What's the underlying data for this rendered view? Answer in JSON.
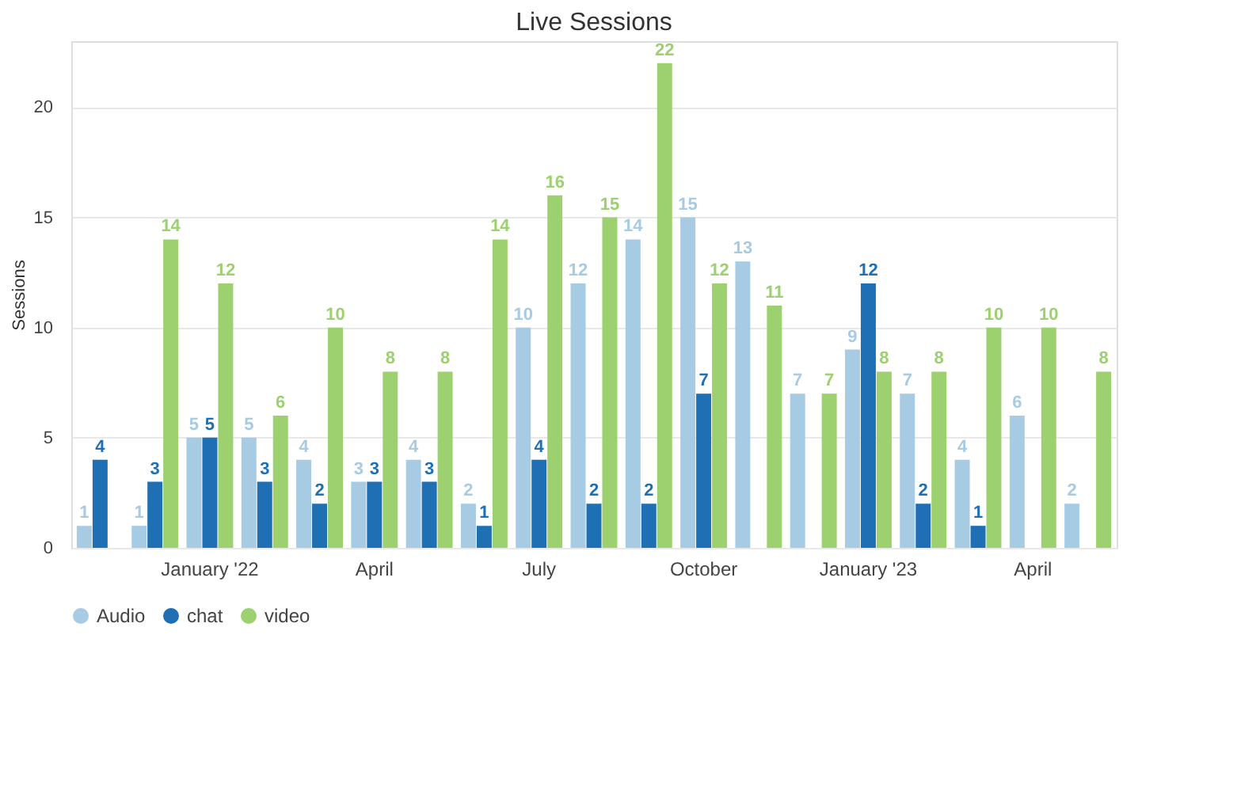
{
  "chart_data": {
    "type": "bar",
    "title": "Live Sessions",
    "ylabel": "Sessions",
    "categories": [
      null,
      null,
      "January '22",
      null,
      null,
      "April",
      null,
      null,
      "July",
      null,
      null,
      "October",
      null,
      null,
      "January '23",
      null,
      null,
      "April",
      null
    ],
    "series": [
      {
        "name": "Audio",
        "color": "#a6cbe3",
        "values": [
          1,
          1,
          5,
          5,
          4,
          3,
          4,
          2,
          10,
          12,
          14,
          15,
          13,
          7,
          9,
          7,
          4,
          6,
          2
        ]
      },
      {
        "name": "chat",
        "color": "#1f6fb4",
        "values": [
          4,
          3,
          5,
          3,
          2,
          3,
          3,
          1,
          4,
          2,
          2,
          7,
          null,
          null,
          12,
          2,
          1,
          null,
          null
        ]
      },
      {
        "name": "video",
        "color": "#9dd06f",
        "values": [
          null,
          14,
          12,
          6,
          10,
          8,
          8,
          14,
          16,
          15,
          22,
          12,
          11,
          7,
          8,
          8,
          10,
          10,
          8
        ]
      }
    ],
    "ylim": [
      0,
      23
    ],
    "yticks": [
      0,
      5,
      10,
      15,
      20
    ],
    "grid": "y",
    "legend": "bottom",
    "data_labels": true
  }
}
